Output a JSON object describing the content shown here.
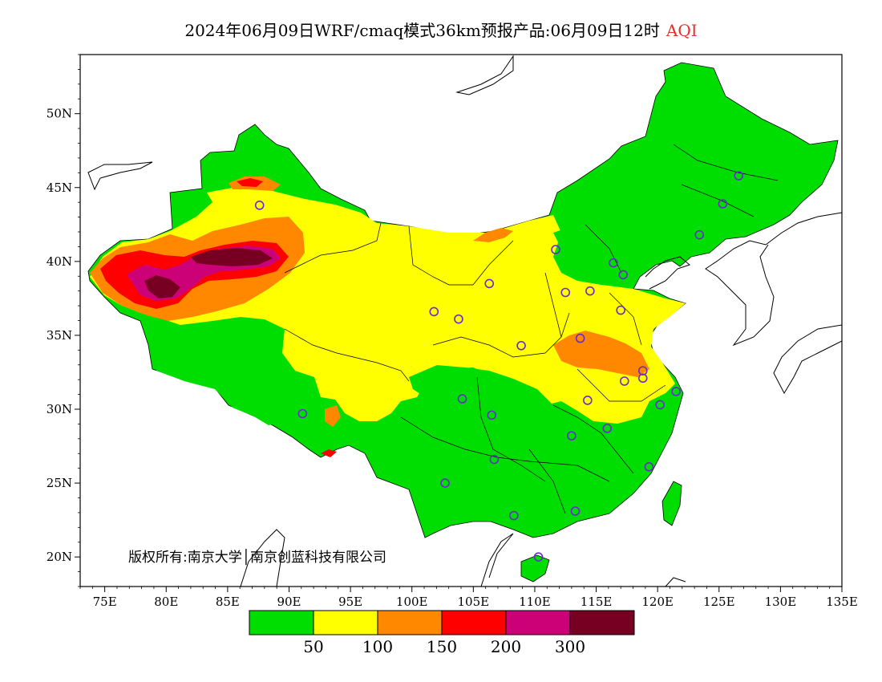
{
  "title": {
    "main": "2024年06月09日WRF/cmaq模式36km预报产品:06月09日12时",
    "variable": "AQI"
  },
  "copyright": "版权所有:南京大学│南京创蓝科技有限公司",
  "axes": {
    "x_ticks": [
      "75E",
      "80E",
      "85E",
      "90E",
      "95E",
      "100E",
      "105E",
      "110E",
      "115E",
      "120E",
      "125E",
      "130E",
      "135E"
    ],
    "x_values": [
      75,
      80,
      85,
      90,
      95,
      100,
      105,
      110,
      115,
      120,
      125,
      130,
      135
    ],
    "y_ticks": [
      "20N",
      "25N",
      "30N",
      "35N",
      "40N",
      "45N",
      "50N"
    ],
    "y_values": [
      20,
      25,
      30,
      35,
      40,
      45,
      50
    ],
    "lon_range": [
      73,
      135
    ],
    "lat_range": [
      18,
      54
    ]
  },
  "legend": {
    "colors": [
      "#00dd00",
      "#ffff00",
      "#ff8800",
      "#ff0000",
      "#cc0077",
      "#770022"
    ],
    "labels": [
      "50",
      "100",
      "150",
      "200",
      "300"
    ]
  },
  "stations": [
    {
      "lon": 87.6,
      "lat": 43.8
    },
    {
      "lon": 91.1,
      "lat": 29.7
    },
    {
      "lon": 101.8,
      "lat": 36.6
    },
    {
      "lon": 103.8,
      "lat": 36.1
    },
    {
      "lon": 106.3,
      "lat": 38.5
    },
    {
      "lon": 111.7,
      "lat": 40.8
    },
    {
      "lon": 116.4,
      "lat": 39.9
    },
    {
      "lon": 117.2,
      "lat": 39.1
    },
    {
      "lon": 114.5,
      "lat": 38.0
    },
    {
      "lon": 112.5,
      "lat": 37.9
    },
    {
      "lon": 117.0,
      "lat": 36.7
    },
    {
      "lon": 113.7,
      "lat": 34.8
    },
    {
      "lon": 108.9,
      "lat": 34.3
    },
    {
      "lon": 104.1,
      "lat": 30.7
    },
    {
      "lon": 106.5,
      "lat": 29.6
    },
    {
      "lon": 114.3,
      "lat": 30.6
    },
    {
      "lon": 117.3,
      "lat": 31.9
    },
    {
      "lon": 118.8,
      "lat": 32.1
    },
    {
      "lon": 121.5,
      "lat": 31.2
    },
    {
      "lon": 120.2,
      "lat": 30.3
    },
    {
      "lon": 115.9,
      "lat": 28.7
    },
    {
      "lon": 113.0,
      "lat": 28.2
    },
    {
      "lon": 106.7,
      "lat": 26.6
    },
    {
      "lon": 102.7,
      "lat": 25.0
    },
    {
      "lon": 119.3,
      "lat": 26.1
    },
    {
      "lon": 113.3,
      "lat": 23.1
    },
    {
      "lon": 108.3,
      "lat": 22.8
    },
    {
      "lon": 110.3,
      "lat": 20.0
    },
    {
      "lon": 123.4,
      "lat": 41.8
    },
    {
      "lon": 125.3,
      "lat": 43.9
    },
    {
      "lon": 126.6,
      "lat": 45.8
    },
    {
      "lon": 118.8,
      "lat": 32.6
    }
  ]
}
